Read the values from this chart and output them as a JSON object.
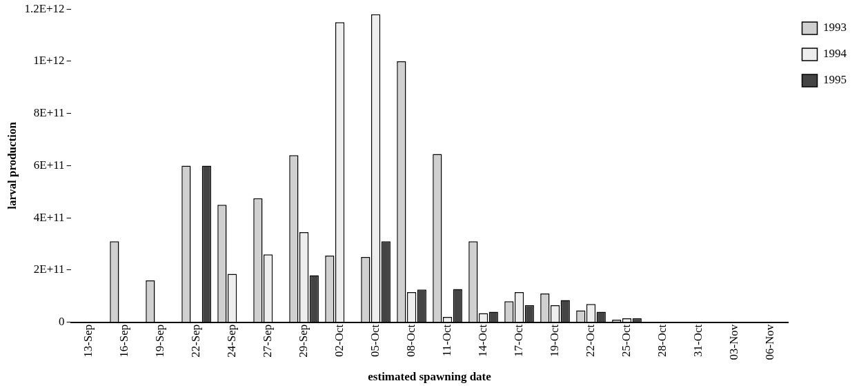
{
  "chart_data": {
    "type": "bar",
    "xlabel": "estimated spawning date",
    "ylabel": "larval production",
    "categories": [
      "13-Sep",
      "16-Sep",
      "19-Sep",
      "22-Sep",
      "24-Sep",
      "27-Sep",
      "29-Sep",
      "02-Oct",
      "05-Oct",
      "08-Oct",
      "11-Oct",
      "14-Oct",
      "17-Oct",
      "19-Oct",
      "22-Oct",
      "25-Oct",
      "28-Oct",
      "31-Oct",
      "03-Nov",
      "06-Nov"
    ],
    "series": [
      {
        "name": "1993",
        "color": "#d0d0d0",
        "values": [
          0,
          310000000000.0,
          160000000000.0,
          600000000000.0,
          450000000000.0,
          475000000000.0,
          640000000000.0,
          255000000000.0,
          250000000000.0,
          1000000000000.0,
          645000000000.0,
          310000000000.0,
          80000000000.0,
          110000000000.0,
          45000000000.0,
          10000000000.0,
          0,
          0,
          0,
          0
        ]
      },
      {
        "name": "1994",
        "color": "#eeeeee",
        "values": [
          0,
          0,
          0,
          0,
          185000000000.0,
          260000000000.0,
          345000000000.0,
          1150000000000.0,
          1180000000000.0,
          115000000000.0,
          20000000000.0,
          35000000000.0,
          115000000000.0,
          65000000000.0,
          70000000000.0,
          15000000000.0,
          0,
          0,
          0,
          0
        ]
      },
      {
        "name": "1995",
        "color": "#444444",
        "values": [
          0,
          0,
          0,
          600000000000.0,
          0,
          0,
          180000000000.0,
          0,
          310000000000.0,
          125000000000.0,
          127000000000.0,
          40000000000.0,
          65000000000.0,
          85000000000.0,
          40000000000.0,
          15000000000.0,
          0,
          0,
          0,
          0
        ]
      }
    ],
    "ylim": [
      0,
      1200000000000.0
    ],
    "yticks": [
      {
        "value": 0,
        "label": "0"
      },
      {
        "value": 200000000000.0,
        "label": "2E+11"
      },
      {
        "value": 400000000000.0,
        "label": "4E+11"
      },
      {
        "value": 600000000000.0,
        "label": "6E+11"
      },
      {
        "value": 800000000000.0,
        "label": "8E+11"
      },
      {
        "value": 1000000000000.0,
        "label": "1E+12"
      },
      {
        "value": 1200000000000.0,
        "label": "1.2E+12"
      }
    ],
    "grid": false,
    "legend": "top right"
  }
}
